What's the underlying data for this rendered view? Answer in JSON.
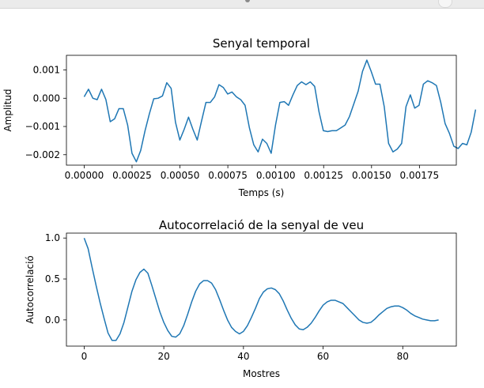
{
  "window": {
    "title": ""
  },
  "chart_data": [
    {
      "type": "line",
      "title": "Senyal temporal",
      "xlabel": "Temps (s)",
      "ylabel": "Amplitud",
      "xlim": [
        -9.25e-05,
        0.0019425
      ],
      "ylim": [
        -0.00237,
        0.00152
      ],
      "xticks": [
        0,
        0.00025,
        0.0005,
        0.00075,
        0.001,
        0.00125,
        0.0015,
        0.00175
      ],
      "xtick_labels": [
        "0.00000",
        "0.00025",
        "0.00050",
        "0.00075",
        "0.00100",
        "0.00125",
        "0.00150",
        "0.00175"
      ],
      "yticks": [
        0.001,
        0.0,
        -0.001,
        -0.002
      ],
      "ytick_labels": [
        "0.001",
        "0.000",
        "−0.001",
        "−0.002"
      ],
      "color": "#1f77b4",
      "series": [
        {
          "x_start": 0,
          "x_step": 2.27e-05,
          "values": [
            5e-05,
            0.00032,
            0.0,
            -5e-05,
            0.00032,
            -5e-05,
            -0.00083,
            -0.00073,
            -0.00037,
            -0.00037,
            -0.00095,
            -0.00195,
            -0.00225,
            -0.00185,
            -0.00115,
            -0.00055,
            -2e-05,
            0.0,
            8e-05,
            0.00055,
            0.00035,
            -0.00085,
            -0.00148,
            -0.0011,
            -0.00067,
            -0.0011,
            -0.00148,
            -0.0008,
            -0.00015,
            -0.00015,
            5e-05,
            0.00048,
            0.00038,
            0.00015,
            0.00022,
            5e-05,
            -5e-05,
            -0.00025,
            -0.00105,
            -0.00165,
            -0.0019,
            -0.00145,
            -0.0016,
            -0.00195,
            -0.00095,
            -0.00015,
            -0.00012,
            -0.00025,
            0.00012,
            0.00045,
            0.00058,
            0.00048,
            0.00058,
            0.00042,
            -0.00048,
            -0.00115,
            -0.00118,
            -0.00115,
            -0.00115,
            -0.00105,
            -0.00095,
            -0.00065,
            -0.0002,
            0.00025,
            0.00095,
            0.00135,
            0.00095,
            0.0005,
            0.0005,
            -0.0003,
            -0.0016,
            -0.0019,
            -0.0018,
            -0.0016,
            -0.0003,
            0.00012,
            -0.00035,
            -0.00025,
            0.0005,
            0.00062,
            0.00055,
            0.00045,
            -0.00015,
            -0.0009,
            -0.00125,
            -0.0017,
            -0.00178,
            -0.0016,
            -0.00165,
            -0.0012,
            -0.0004
          ]
        }
      ]
    },
    {
      "type": "line",
      "title": "Autocorrelació de la senyal de veu",
      "xlabel": "Mostres",
      "ylabel": "Autocorrelació",
      "xlim": [
        -4.45,
        93.45
      ],
      "ylim": [
        -0.32,
        1.06
      ],
      "xticks": [
        0,
        20,
        40,
        60,
        80
      ],
      "xtick_labels": [
        "0",
        "20",
        "40",
        "60",
        "80"
      ],
      "yticks": [
        1.0,
        0.5,
        0.0
      ],
      "ytick_labels": [
        "1.0",
        "0.5",
        "0.0"
      ],
      "color": "#1f77b4",
      "series": [
        {
          "x_start": 0,
          "x_step": 1,
          "values": [
            1.0,
            0.87,
            0.64,
            0.42,
            0.21,
            0.02,
            -0.16,
            -0.25,
            -0.25,
            -0.17,
            -0.03,
            0.16,
            0.35,
            0.49,
            0.58,
            0.62,
            0.57,
            0.42,
            0.26,
            0.1,
            -0.03,
            -0.13,
            -0.2,
            -0.21,
            -0.17,
            -0.07,
            0.07,
            0.22,
            0.35,
            0.44,
            0.48,
            0.48,
            0.45,
            0.37,
            0.25,
            0.12,
            0.0,
            -0.09,
            -0.14,
            -0.17,
            -0.14,
            -0.07,
            0.03,
            0.14,
            0.26,
            0.34,
            0.38,
            0.39,
            0.37,
            0.32,
            0.23,
            0.12,
            0.02,
            -0.06,
            -0.11,
            -0.12,
            -0.09,
            -0.04,
            0.03,
            0.11,
            0.18,
            0.22,
            0.24,
            0.24,
            0.22,
            0.2,
            0.15,
            0.1,
            0.05,
            0.0,
            -0.03,
            -0.04,
            -0.03,
            0.01,
            0.06,
            0.1,
            0.14,
            0.16,
            0.17,
            0.17,
            0.15,
            0.12,
            0.08,
            0.05,
            0.03,
            0.01,
            0.0,
            -0.01,
            -0.01,
            0.0
          ]
        }
      ]
    }
  ]
}
